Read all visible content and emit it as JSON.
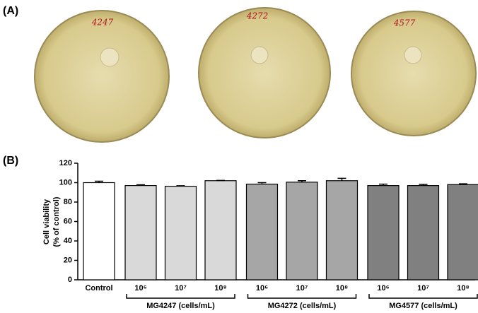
{
  "panel_a": {
    "label": "(A)",
    "plates": [
      "4247",
      "4272",
      "4577"
    ]
  },
  "chart_data": {
    "type": "bar",
    "panel_label": "(B)",
    "ylabel": [
      "Cell viability",
      "(% of control)"
    ],
    "ylim": [
      0,
      120
    ],
    "yticks": [
      0,
      20,
      40,
      60,
      80,
      100,
      120
    ],
    "control": {
      "name": "Control",
      "value": 100,
      "error": 1.5,
      "color": "#ffffff"
    },
    "groups": [
      {
        "name": "MG4247 (cells/mL)",
        "color": "#d9d9d9",
        "categories": [
          "10⁶",
          "10⁷",
          "10⁸"
        ],
        "values": [
          97,
          96.3,
          102
        ],
        "errors": [
          0.8,
          0.5,
          0.3
        ]
      },
      {
        "name": "MG4272 (cells/mL)",
        "color": "#a6a6a6",
        "categories": [
          "10⁶",
          "10⁷",
          "10⁸"
        ],
        "values": [
          98.5,
          100.5,
          102
        ],
        "errors": [
          1.5,
          1.5,
          2.5
        ]
      },
      {
        "name": "MG4577 (cells/mL)",
        "color": "#808080",
        "categories": [
          "10⁶",
          "10⁷",
          "10⁸"
        ],
        "values": [
          97,
          97,
          98
        ],
        "errors": [
          1.5,
          1.2,
          0.8
        ]
      }
    ]
  }
}
